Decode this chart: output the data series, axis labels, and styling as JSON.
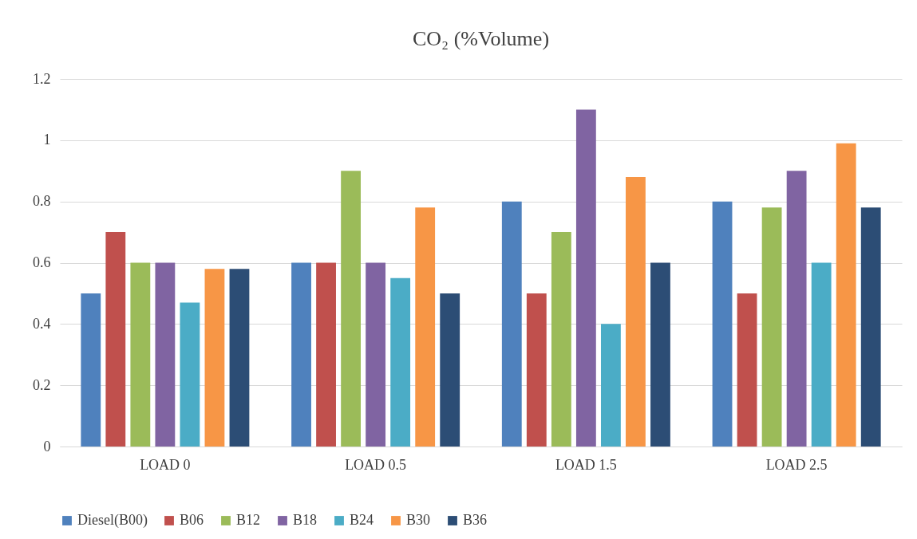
{
  "chart_data": {
    "type": "bar",
    "title": "CO₂ (%Volume)",
    "categories": [
      "LOAD 0",
      "LOAD 0.5",
      "LOAD 1.5",
      "LOAD 2.5"
    ],
    "series": [
      {
        "name": "Diesel(B00)",
        "color": "#4f81bd",
        "values": [
          0.5,
          0.6,
          0.8,
          0.8
        ]
      },
      {
        "name": "B06",
        "color": "#c0504d",
        "values": [
          0.7,
          0.6,
          0.5,
          0.5
        ]
      },
      {
        "name": "B12",
        "color": "#9bbb59",
        "values": [
          0.6,
          0.9,
          0.7,
          0.78
        ]
      },
      {
        "name": "B18",
        "color": "#8064a2",
        "values": [
          0.6,
          0.6,
          1.1,
          0.9
        ]
      },
      {
        "name": "B24",
        "color": "#4bacc6",
        "values": [
          0.47,
          0.55,
          0.4,
          0.6
        ]
      },
      {
        "name": "B30",
        "color": "#f79646",
        "values": [
          0.58,
          0.78,
          0.88,
          0.99
        ]
      },
      {
        "name": "B36",
        "color": "#2c4d75",
        "values": [
          0.58,
          0.5,
          0.6,
          0.78
        ]
      }
    ],
    "ylim": [
      0,
      1.2
    ],
    "yticks": [
      0,
      0.2,
      0.4,
      0.6,
      0.8,
      1,
      1.2
    ],
    "grid": "y",
    "legend": "bottom"
  }
}
